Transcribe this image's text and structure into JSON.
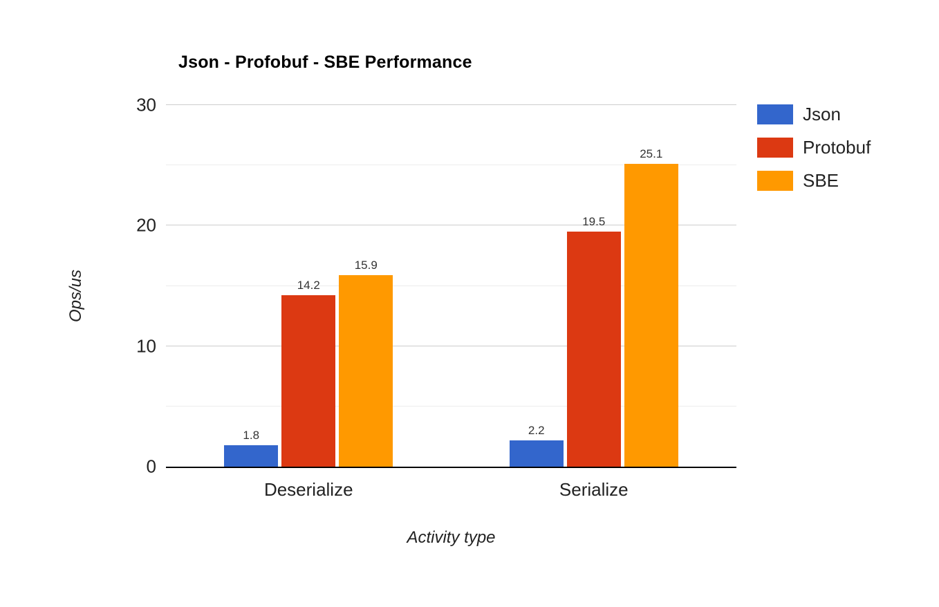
{
  "chart_data": {
    "type": "bar",
    "title": "Json - Profobuf - SBE Performance",
    "xlabel": "Activity type",
    "ylabel": "Ops/us",
    "categories": [
      "Deserialize",
      "Serialize"
    ],
    "series": [
      {
        "name": "Json",
        "color": "#3366CC",
        "values": [
          1.8,
          2.2
        ]
      },
      {
        "name": "Protobuf",
        "color": "#DC3912",
        "values": [
          14.2,
          19.5
        ]
      },
      {
        "name": "SBE",
        "color": "#FF9900",
        "values": [
          15.9,
          25.1
        ]
      }
    ],
    "ylim": [
      0,
      30
    ],
    "yticks": [
      0,
      10,
      20,
      30
    ],
    "minor_gridlines": [
      5,
      15,
      25
    ],
    "grid": true,
    "legend_position": "right",
    "background_color": "#ffffff",
    "axis_line_color": "#000000"
  }
}
